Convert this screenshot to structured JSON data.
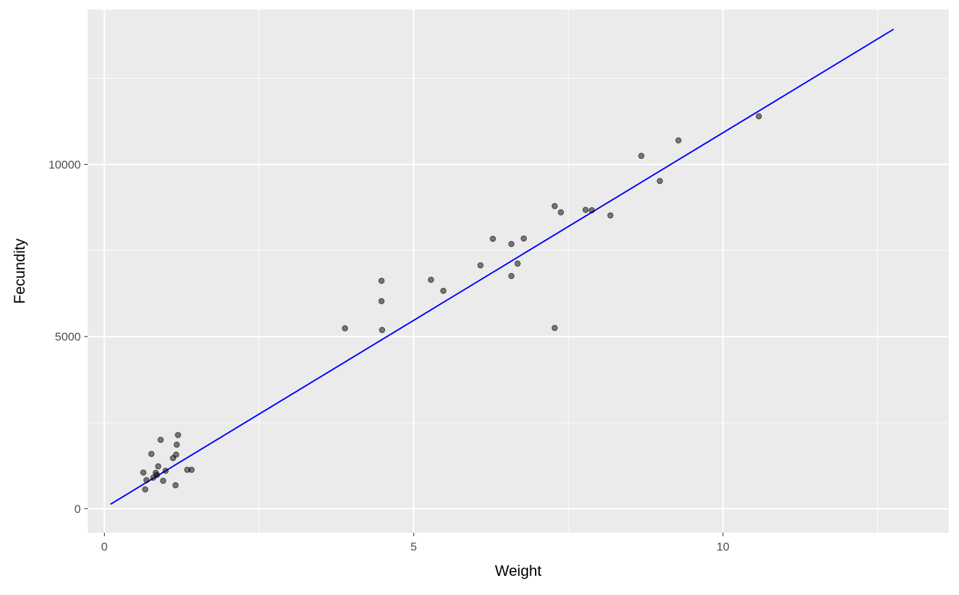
{
  "chart_data": {
    "type": "scatter",
    "title": "",
    "xlabel": "Weight",
    "ylabel": "Fecundity",
    "xlim": [
      -0.27,
      13.65
    ],
    "ylim": [
      -700,
      14500
    ],
    "x_ticks": [
      0,
      5,
      10
    ],
    "x_tick_labels": [
      "0",
      "5",
      "10"
    ],
    "x_minor_ticks": [
      2.5,
      7.5,
      12.5
    ],
    "y_ticks": [
      0,
      5000,
      10000
    ],
    "y_tick_labels": [
      "0",
      "5000",
      "10000"
    ],
    "y_minor_ticks": [
      2500,
      7500,
      12500
    ],
    "grid": true,
    "legend": "none",
    "colors": {
      "panel_background": "#EBEBEB",
      "grid": "#FFFFFF",
      "point_fill": "#000000",
      "point_opacity": 0.5,
      "fit_line": "#0000FF",
      "tick_label": "#4D4D4D",
      "axis_title": "#000000"
    },
    "series": [
      {
        "type": "scatter",
        "x": [
          0.63,
          0.66,
          0.68,
          0.76,
          0.79,
          0.83,
          0.85,
          0.87,
          0.91,
          0.95,
          0.99,
          1.11,
          1.15,
          1.16,
          1.17,
          1.19,
          1.34,
          1.41,
          3.89,
          4.48,
          4.48,
          4.49,
          5.28,
          5.48,
          6.08,
          6.28,
          6.58,
          6.58,
          6.68,
          6.78,
          7.28,
          7.28,
          7.38,
          7.78,
          7.88,
          8.18,
          8.68,
          8.98,
          9.28,
          10.58
        ],
        "y": [
          1050,
          560,
          830,
          1590,
          900,
          1040,
          980,
          1230,
          2000,
          810,
          1100,
          1470,
          680,
          1570,
          1860,
          2140,
          1130,
          1130,
          5240,
          6620,
          6030,
          5190,
          6650,
          6330,
          7070,
          7840,
          7690,
          6760,
          7120,
          7850,
          8790,
          5250,
          8610,
          8680,
          8670,
          8520,
          10250,
          9520,
          10700,
          11400
        ]
      },
      {
        "type": "line",
        "name": "",
        "x": [
          0.1,
          12.76
        ],
        "y": [
          130,
          13930
        ]
      }
    ]
  }
}
